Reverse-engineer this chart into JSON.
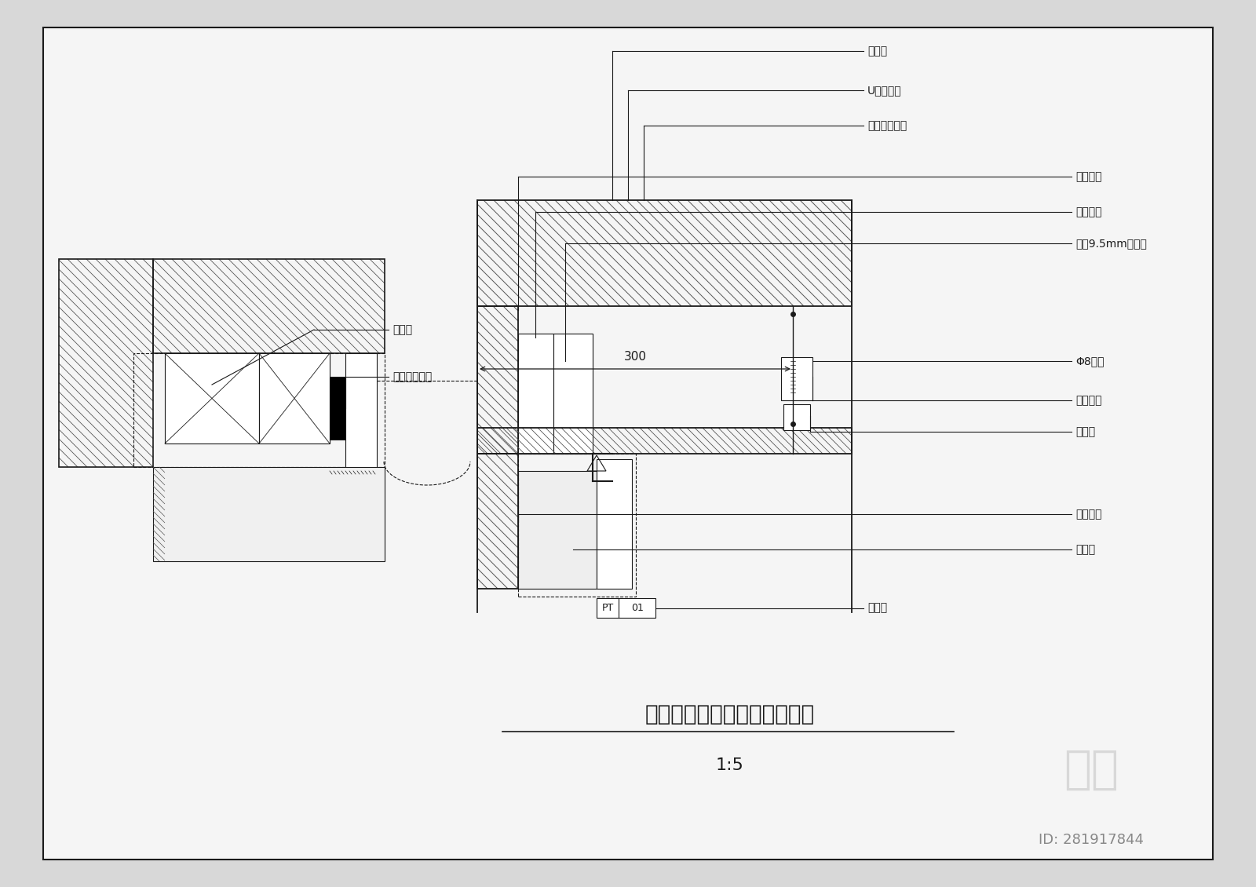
{
  "title": "大理石墙面与吸顶乔胶漆节点",
  "title_display": "大理石墙面与吸顶乔胶漆节点",
  "scale": "1:5",
  "bg_color": "#d8d8d8",
  "paper_color": "#f2f2f2",
  "line_color": "#1a1a1a",
  "wm_color": "#bbbbbb",
  "logo_text": "知末",
  "id_text": "ID: 281917844",
  "labels_right_top": [
    "木龙骨",
    "U型边龙骨",
    "模型石膏填缝"
  ],
  "labels_right_mid": [
    "结构砖体",
    "轻钙龙骨",
    "双層9.5mm石膏板"
  ],
  "labels_right_lower": [
    "Φ8吸筋",
    "龙骨吸件",
    "主龙骨"
  ],
  "labels_bottom": [
    "结构砖体",
    "灸浆层",
    "大理石"
  ],
  "labels_left": [
    "木龙骨",
    "模型石膏填缝"
  ],
  "dim_300": "300"
}
